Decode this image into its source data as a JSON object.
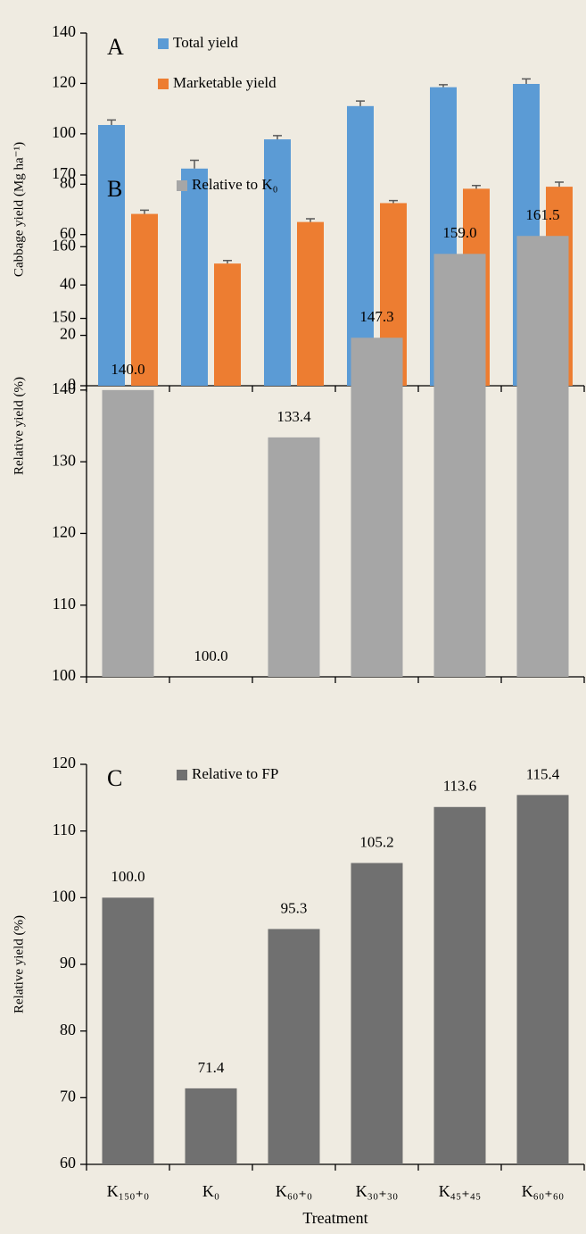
{
  "chart_data": [
    {
      "type": "bar",
      "panel": "A",
      "ylabel": "Cabbage yield (Mg ha⁻¹)",
      "ylim": [
        0,
        140
      ],
      "yticks": [
        0,
        20,
        40,
        60,
        80,
        100,
        120,
        140
      ],
      "series": [
        {
          "name": "Total yield",
          "color": "#5b9bd5",
          "values": [
            103.5,
            86.2,
            97.8,
            111,
            118.5,
            119.8
          ],
          "errors": [
            2,
            3.3,
            1.5,
            2,
            1,
            2
          ]
        },
        {
          "name": "Marketable yield",
          "color": "#ed7d31",
          "values": [
            68.2,
            48.5,
            65,
            72.5,
            78.2,
            79
          ],
          "errors": [
            1.5,
            1.2,
            1.3,
            1,
            1.3,
            1.8
          ]
        }
      ]
    },
    {
      "type": "bar",
      "panel": "B",
      "ylabel": "Relative yield (%)",
      "ylim": [
        100,
        170
      ],
      "yticks": [
        100,
        110,
        120,
        130,
        140,
        150,
        160,
        170
      ],
      "series": [
        {
          "name": "Relative to K₀",
          "color": "#a6a6a6",
          "values": [
            140.0,
            100.0,
            133.4,
            147.3,
            159.0,
            161.5
          ],
          "value_labels": [
            "140.0",
            "100.0",
            "133.4",
            "147.3",
            "159.0",
            "161.5"
          ]
        }
      ]
    },
    {
      "type": "bar",
      "panel": "C",
      "ylabel": "Relative yield (%)",
      "xlabel": "Treatment",
      "ylim": [
        60,
        120
      ],
      "yticks": [
        60,
        70,
        80,
        90,
        100,
        110,
        120
      ],
      "categories": [
        "K₁₅₀₊₀",
        "K₀",
        "K₆₀₊₀",
        "K₃₀₊₃₀",
        "K₄₅₊₄₅",
        "K₆₀₊₆₀"
      ],
      "series": [
        {
          "name": "Relative to FP",
          "color": "#707070",
          "values": [
            100.0,
            71.4,
            95.3,
            105.2,
            113.6,
            115.4
          ],
          "value_labels": [
            "100.0",
            "71.4",
            "95.3",
            "105.2",
            "113.6",
            "115.4"
          ]
        }
      ]
    }
  ]
}
